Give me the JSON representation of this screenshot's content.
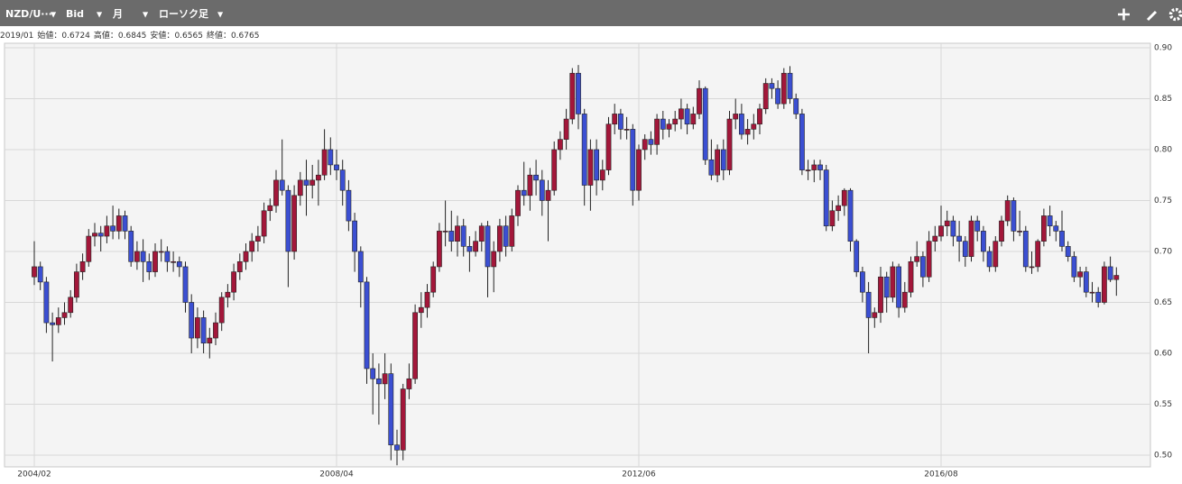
{
  "toolbar": {
    "symbol": "NZD/U···",
    "price": "Bid",
    "period": "月",
    "style": "ローソク足"
  },
  "info": {
    "date": "2019/01",
    "labels": [
      "始値：",
      "高値：",
      "安値：",
      "終値："
    ]
  },
  "chart_data": {
    "type": "candlestick",
    "categories": [
      "2004/02",
      null,
      null,
      null,
      null,
      null,
      null,
      null,
      null,
      null,
      null,
      null,
      null,
      null,
      null,
      null,
      null,
      null,
      null,
      null,
      null,
      null,
      null,
      null,
      null,
      null,
      null,
      null,
      null,
      null,
      null,
      null,
      null,
      null,
      null,
      null,
      null,
      null,
      null,
      null,
      null,
      null,
      null,
      null,
      null,
      null,
      null,
      null,
      null,
      null,
      "2008/04",
      null,
      null,
      null,
      null,
      null,
      null,
      null,
      null,
      null,
      null,
      null,
      null,
      null,
      null,
      null,
      null,
      null,
      null,
      null,
      null,
      null,
      null,
      null,
      null,
      null,
      null,
      null,
      null,
      null,
      null,
      null,
      null,
      null,
      null,
      null,
      null,
      null,
      null,
      null,
      null,
      null,
      null,
      null,
      null,
      null,
      null,
      null,
      null,
      null,
      "2012/06",
      null,
      null,
      null,
      null,
      null,
      null,
      null,
      null,
      null,
      null,
      null,
      null,
      null,
      null,
      null,
      null,
      null,
      null,
      null,
      null,
      null,
      null,
      null,
      null,
      null,
      null,
      null,
      null,
      null,
      null,
      null,
      null,
      null,
      null,
      null,
      null,
      null,
      null,
      null,
      null,
      null,
      null,
      null,
      null,
      null,
      null,
      null,
      null,
      null,
      "2016/08",
      null,
      null,
      null,
      null,
      null,
      null,
      null,
      null,
      null,
      null,
      null,
      null,
      null,
      null,
      null,
      null,
      null,
      null,
      null,
      null,
      null,
      null,
      null,
      null,
      null,
      null,
      null,
      null,
      null
    ],
    "open": [
      0.675,
      0.685,
      0.67,
      0.63,
      0.628,
      0.635,
      0.64,
      0.655,
      0.68,
      0.69,
      0.715,
      0.718,
      0.715,
      0.725,
      0.72,
      0.735,
      0.72,
      0.69,
      0.7,
      0.69,
      0.68,
      0.7,
      0.7,
      0.69,
      0.69,
      0.685,
      0.65,
      0.615,
      0.635,
      0.61,
      0.615,
      0.63,
      0.655,
      0.66,
      0.68,
      0.69,
      0.7,
      0.71,
      0.715,
      0.74,
      0.745,
      0.77,
      0.76,
      0.7,
      0.755,
      0.77,
      0.765,
      0.77,
      0.775,
      0.8,
      0.785,
      0.78,
      0.76,
      0.73,
      0.7,
      0.67,
      0.585,
      0.575,
      0.57,
      0.58,
      0.51,
      0.505,
      0.565,
      0.575,
      0.64,
      0.645,
      0.66,
      0.685,
      0.72,
      0.72,
      0.71,
      0.725,
      0.705,
      0.7,
      0.71,
      0.725,
      0.685,
      0.7,
      0.725,
      0.705,
      0.735,
      0.76,
      0.755,
      0.775,
      0.77,
      0.75,
      0.76,
      0.8,
      0.81,
      0.83,
      0.875,
      0.835,
      0.765,
      0.8,
      0.77,
      0.78,
      0.825,
      0.835,
      0.82,
      0.82,
      0.76,
      0.8,
      0.81,
      0.805,
      0.83,
      0.82,
      0.825,
      0.83,
      0.84,
      0.825,
      0.835,
      0.86,
      0.79,
      0.775,
      0.8,
      0.78,
      0.83,
      0.835,
      0.815,
      0.82,
      0.825,
      0.84,
      0.865,
      0.86,
      0.845,
      0.875,
      0.85,
      0.835,
      0.78,
      0.78,
      0.785,
      0.78,
      0.725,
      0.74,
      0.745,
      0.76,
      0.71,
      0.68,
      0.66,
      0.635,
      0.64,
      0.675,
      0.655,
      0.685,
      0.645,
      0.66,
      0.69,
      0.695,
      0.675,
      0.71,
      0.715,
      0.725,
      0.73,
      0.715,
      0.71,
      0.695,
      0.73,
      0.72,
      0.7,
      0.685,
      0.71,
      0.73,
      0.75,
      0.72,
      0.72,
      0.685,
      0.685,
      0.71,
      0.735,
      0.725,
      0.72,
      0.705,
      0.695,
      0.675,
      0.68,
      0.66,
      0.66,
      0.65,
      0.685,
      0.6724
    ],
    "high": [
      0.71,
      0.69,
      0.675,
      0.64,
      0.645,
      0.65,
      0.662,
      0.688,
      0.698,
      0.722,
      0.728,
      0.725,
      0.735,
      0.745,
      0.742,
      0.74,
      0.725,
      0.71,
      0.712,
      0.698,
      0.708,
      0.712,
      0.705,
      0.7,
      0.695,
      0.69,
      0.658,
      0.645,
      0.642,
      0.625,
      0.64,
      0.66,
      0.668,
      0.688,
      0.698,
      0.708,
      0.718,
      0.725,
      0.748,
      0.752,
      0.78,
      0.81,
      0.765,
      0.765,
      0.778,
      0.79,
      0.785,
      0.79,
      0.82,
      0.812,
      0.8,
      0.79,
      0.77,
      0.738,
      0.705,
      0.675,
      0.6,
      0.59,
      0.6,
      0.59,
      0.525,
      0.57,
      0.59,
      0.648,
      0.66,
      0.668,
      0.69,
      0.728,
      0.75,
      0.74,
      0.735,
      0.732,
      0.715,
      0.72,
      0.728,
      0.73,
      0.71,
      0.732,
      0.735,
      0.742,
      0.765,
      0.788,
      0.782,
      0.79,
      0.78,
      0.77,
      0.808,
      0.818,
      0.84,
      0.88,
      0.883,
      0.84,
      0.81,
      0.81,
      0.79,
      0.832,
      0.845,
      0.84,
      0.832,
      0.825,
      0.805,
      0.815,
      0.818,
      0.835,
      0.838,
      0.83,
      0.838,
      0.85,
      0.845,
      0.842,
      0.868,
      0.862,
      0.81,
      0.805,
      0.81,
      0.838,
      0.85,
      0.845,
      0.83,
      0.835,
      0.845,
      0.87,
      0.87,
      0.868,
      0.88,
      0.882,
      0.855,
      0.84,
      0.79,
      0.79,
      0.79,
      0.785,
      0.75,
      0.755,
      0.762,
      0.762,
      0.712,
      0.685,
      0.67,
      0.645,
      0.685,
      0.68,
      0.69,
      0.688,
      0.67,
      0.695,
      0.71,
      0.7,
      0.72,
      0.725,
      0.745,
      0.74,
      0.735,
      0.73,
      0.715,
      0.735,
      0.735,
      0.725,
      0.705,
      0.715,
      0.735,
      0.755,
      0.753,
      0.74,
      0.725,
      0.7,
      0.712,
      0.742,
      0.745,
      0.73,
      0.74,
      0.71,
      0.7,
      0.685,
      0.685,
      0.67,
      0.665,
      0.69,
      0.695,
      0.6845
    ],
    "low": [
      0.667,
      0.662,
      0.62,
      0.592,
      0.62,
      0.628,
      0.635,
      0.65,
      0.672,
      0.685,
      0.705,
      0.7,
      0.708,
      0.712,
      0.712,
      0.712,
      0.685,
      0.682,
      0.67,
      0.672,
      0.675,
      0.69,
      0.68,
      0.68,
      0.675,
      0.64,
      0.6,
      0.605,
      0.6,
      0.595,
      0.608,
      0.622,
      0.645,
      0.652,
      0.672,
      0.682,
      0.69,
      0.7,
      0.708,
      0.73,
      0.738,
      0.755,
      0.665,
      0.692,
      0.745,
      0.735,
      0.752,
      0.745,
      0.77,
      0.775,
      0.77,
      0.745,
      0.72,
      0.68,
      0.645,
      0.57,
      0.54,
      0.53,
      0.555,
      0.495,
      0.49,
      0.495,
      0.555,
      0.57,
      0.625,
      0.635,
      0.655,
      0.68,
      0.705,
      0.7,
      0.695,
      0.695,
      0.68,
      0.695,
      0.7,
      0.655,
      0.66,
      0.69,
      0.695,
      0.7,
      0.725,
      0.745,
      0.74,
      0.755,
      0.735,
      0.71,
      0.755,
      0.79,
      0.8,
      0.825,
      0.82,
      0.745,
      0.74,
      0.755,
      0.76,
      0.775,
      0.815,
      0.81,
      0.81,
      0.745,
      0.75,
      0.79,
      0.795,
      0.795,
      0.81,
      0.812,
      0.818,
      0.82,
      0.815,
      0.82,
      0.83,
      0.785,
      0.77,
      0.768,
      0.77,
      0.775,
      0.82,
      0.81,
      0.805,
      0.81,
      0.815,
      0.835,
      0.85,
      0.84,
      0.84,
      0.845,
      0.83,
      0.775,
      0.77,
      0.768,
      0.77,
      0.72,
      0.72,
      0.73,
      0.735,
      0.7,
      0.675,
      0.65,
      0.6,
      0.625,
      0.63,
      0.64,
      0.65,
      0.635,
      0.64,
      0.655,
      0.685,
      0.665,
      0.67,
      0.7,
      0.71,
      0.715,
      0.705,
      0.69,
      0.685,
      0.69,
      0.71,
      0.69,
      0.68,
      0.68,
      0.705,
      0.725,
      0.71,
      0.715,
      0.68,
      0.678,
      0.68,
      0.705,
      0.715,
      0.71,
      0.7,
      0.69,
      0.67,
      0.665,
      0.655,
      0.65,
      0.645,
      0.648,
      0.67,
      0.6565
    ],
    "close": [
      0.685,
      0.67,
      0.63,
      0.628,
      0.635,
      0.64,
      0.655,
      0.68,
      0.69,
      0.715,
      0.718,
      0.715,
      0.725,
      0.72,
      0.735,
      0.72,
      0.69,
      0.7,
      0.69,
      0.68,
      0.7,
      0.7,
      0.69,
      0.69,
      0.685,
      0.65,
      0.615,
      0.635,
      0.61,
      0.615,
      0.63,
      0.655,
      0.66,
      0.68,
      0.69,
      0.7,
      0.71,
      0.715,
      0.74,
      0.745,
      0.77,
      0.76,
      0.7,
      0.755,
      0.77,
      0.765,
      0.77,
      0.775,
      0.8,
      0.785,
      0.78,
      0.76,
      0.73,
      0.7,
      0.67,
      0.585,
      0.575,
      0.57,
      0.58,
      0.51,
      0.505,
      0.565,
      0.575,
      0.64,
      0.645,
      0.66,
      0.685,
      0.72,
      0.72,
      0.71,
      0.725,
      0.705,
      0.7,
      0.71,
      0.725,
      0.685,
      0.7,
      0.725,
      0.705,
      0.735,
      0.76,
      0.755,
      0.775,
      0.77,
      0.75,
      0.76,
      0.8,
      0.81,
      0.83,
      0.875,
      0.835,
      0.765,
      0.8,
      0.77,
      0.78,
      0.825,
      0.835,
      0.82,
      0.82,
      0.76,
      0.8,
      0.81,
      0.805,
      0.83,
      0.82,
      0.825,
      0.83,
      0.84,
      0.825,
      0.835,
      0.86,
      0.79,
      0.775,
      0.8,
      0.78,
      0.83,
      0.835,
      0.815,
      0.82,
      0.825,
      0.84,
      0.865,
      0.86,
      0.845,
      0.875,
      0.85,
      0.835,
      0.78,
      0.78,
      0.785,
      0.78,
      0.725,
      0.74,
      0.745,
      0.76,
      0.71,
      0.68,
      0.66,
      0.635,
      0.64,
      0.675,
      0.655,
      0.685,
      0.645,
      0.66,
      0.69,
      0.695,
      0.675,
      0.71,
      0.715,
      0.725,
      0.73,
      0.715,
      0.71,
      0.695,
      0.73,
      0.72,
      0.7,
      0.685,
      0.71,
      0.73,
      0.75,
      0.72,
      0.72,
      0.685,
      0.685,
      0.71,
      0.735,
      0.725,
      0.72,
      0.705,
      0.695,
      0.675,
      0.68,
      0.66,
      0.66,
      0.65,
      0.685,
      0.6724,
      0.6765
    ],
    "up_color": "#a3173a",
    "down_color": "#3b4fd2",
    "ylim": [
      0.4885,
      0.9044
    ],
    "yticks": [
      {
        "value": 0.5,
        "label": "0.50"
      },
      0.55,
      {
        "value": 0.6,
        "label": "0.60"
      },
      0.65,
      {
        "value": 0.7,
        "label": "0.70"
      },
      0.75,
      {
        "value": 0.8,
        "label": "0.80"
      },
      0.85,
      {
        "value": 0.9,
        "label": "0.90"
      }
    ],
    "grid": true
  }
}
